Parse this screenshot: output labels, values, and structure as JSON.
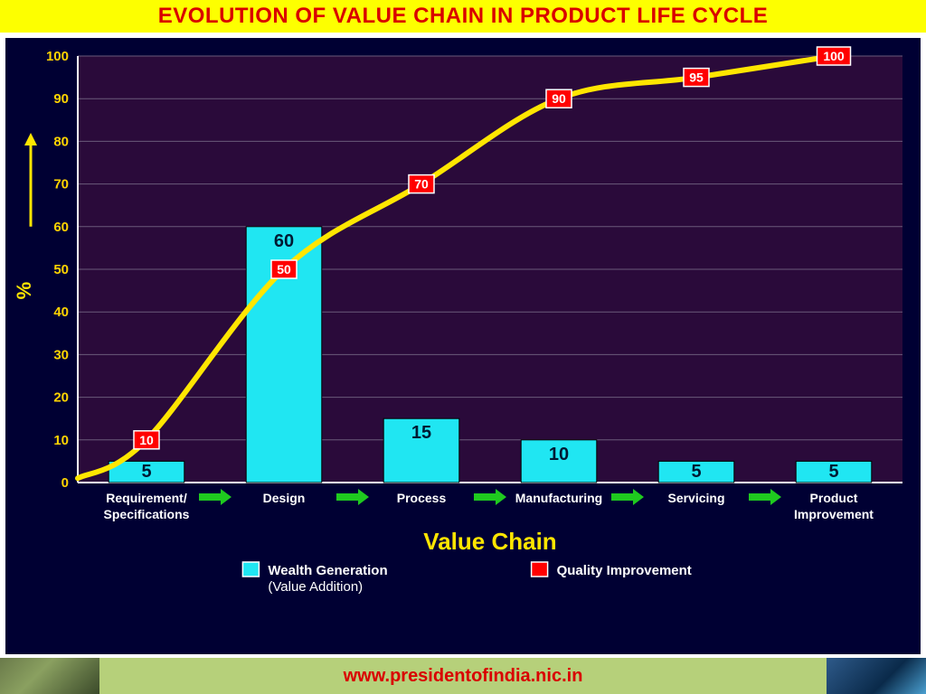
{
  "title": "EVOLUTION OF VALUE CHAIN IN PRODUCT LIFE CYCLE",
  "title_color": "#d90000",
  "title_bg": "#fdff00",
  "footer_url": "www.presidentofindia.nic.in",
  "footer_url_color": "#d90000",
  "footer_mid_bg": "#b6d07a",
  "chart": {
    "type": "bar+line",
    "panel_bg": "#000033",
    "plot_bg": "#2a0a3a",
    "plot_bg_alt": "#2a0a3a",
    "axis_color": "#ffffff",
    "grid_color": "#6a5a7a",
    "ylim": [
      0,
      100
    ],
    "ytick_step": 10,
    "ytick_color": "#ffd400",
    "ytick_fontsize": 15,
    "categories": [
      "Requirement/\nSpecifications",
      "Design",
      "Process",
      "Manufacturing",
      "Servicing",
      "Product\nImprovement"
    ],
    "cat_fontsize": 14,
    "cat_color": "#ffffff",
    "bar": {
      "values": [
        5,
        60,
        15,
        10,
        5,
        5
      ],
      "fill": "#20e6f2",
      "stroke": "#000000",
      "value_color": "#001a33",
      "value_fontsize": 20,
      "width_ratio": 0.55
    },
    "line": {
      "values": [
        10,
        50,
        70,
        90,
        95,
        100
      ],
      "stroke": "#ffe600",
      "stroke_width": 6,
      "label_bg": "#ff0000",
      "label_stroke": "#ffffff",
      "label_fontsize": 14
    },
    "arrows": {
      "fill": "#1fca1f",
      "count_between": 5
    },
    "y_axis_title": "%",
    "y_axis_title_color": "#ffe600",
    "y_axis_title_fontsize": 22,
    "x_axis_title": "Value Chain",
    "x_axis_title_color": "#ffe600",
    "x_axis_title_fontsize": 26,
    "legend": {
      "items": [
        {
          "swatch_fill": "#20e6f2",
          "swatch_stroke": "#ffffff",
          "line1": "Wealth Generation",
          "line2": "(Value Addition)",
          "line1_bold": true,
          "line2_color": "#cfcfcf"
        },
        {
          "swatch_fill": "#ff0000",
          "swatch_stroke": "#ffffff",
          "line1": "Quality Improvement",
          "line1_bold": true
        }
      ],
      "fontsize": 15
    }
  }
}
